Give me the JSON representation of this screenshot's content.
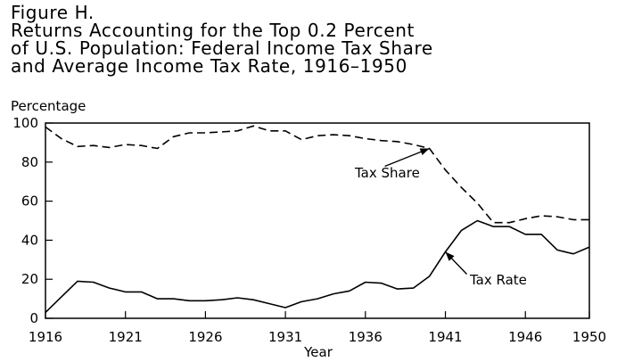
{
  "figure": {
    "label": "Figure H.",
    "title_lines": [
      "Returns Accounting for the Top 0.2 Percent",
      "of U.S. Population: Federal Income Tax Share",
      "and Average Income Tax Rate, 1916–1950"
    ]
  },
  "chart_data": {
    "type": "line",
    "title": "Returns Accounting for the Top 0.2 Percent of U.S. Population: Federal Income Tax Share and Average Income Tax Rate, 1916–1950",
    "xlabel": "Year",
    "ylabel": "Percentage",
    "xlim": [
      1916,
      1950
    ],
    "ylim": [
      0,
      100
    ],
    "x_ticks": [
      "1916",
      "1921",
      "1926",
      "1931",
      "1936",
      "1941",
      "1946",
      "1950"
    ],
    "y_ticks": [
      "0",
      "20",
      "40",
      "60",
      "80",
      "100"
    ],
    "grid": false,
    "x": [
      1916,
      1917,
      1918,
      1919,
      1920,
      1921,
      1922,
      1923,
      1924,
      1925,
      1926,
      1927,
      1928,
      1929,
      1930,
      1931,
      1932,
      1933,
      1934,
      1935,
      1936,
      1937,
      1938,
      1939,
      1940,
      1941,
      1942,
      1943,
      1944,
      1945,
      1946,
      1947,
      1948,
      1949,
      1950
    ],
    "series": [
      {
        "name": "Tax Share",
        "style": "dashed",
        "values": [
          98,
          92,
          88,
          88.5,
          87.5,
          89,
          88.5,
          87,
          93,
          95,
          95,
          95.5,
          96,
          98.5,
          96,
          96,
          91.5,
          93.5,
          94,
          93.5,
          92,
          91,
          90.5,
          89,
          87,
          76,
          67,
          59,
          49,
          49,
          51,
          52.5,
          52,
          50.5,
          50.5
        ]
      },
      {
        "name": "Tax Rate",
        "style": "solid",
        "values": [
          3,
          11,
          19,
          18.5,
          15.5,
          13.5,
          13.5,
          10,
          10,
          9,
          9,
          9.5,
          10.5,
          9.5,
          7.5,
          5.5,
          8.5,
          10,
          12.5,
          14,
          18.5,
          18,
          15,
          15.5,
          21.5,
          34,
          45,
          50,
          47,
          47,
          43,
          43,
          35,
          33,
          36.5
        ]
      }
    ],
    "annotations": [
      {
        "text": "Tax Share",
        "points_to": "Tax Share",
        "at_x": 1940
      },
      {
        "text": "Tax Rate",
        "points_to": "Tax Rate",
        "at_x": 1941
      }
    ]
  }
}
